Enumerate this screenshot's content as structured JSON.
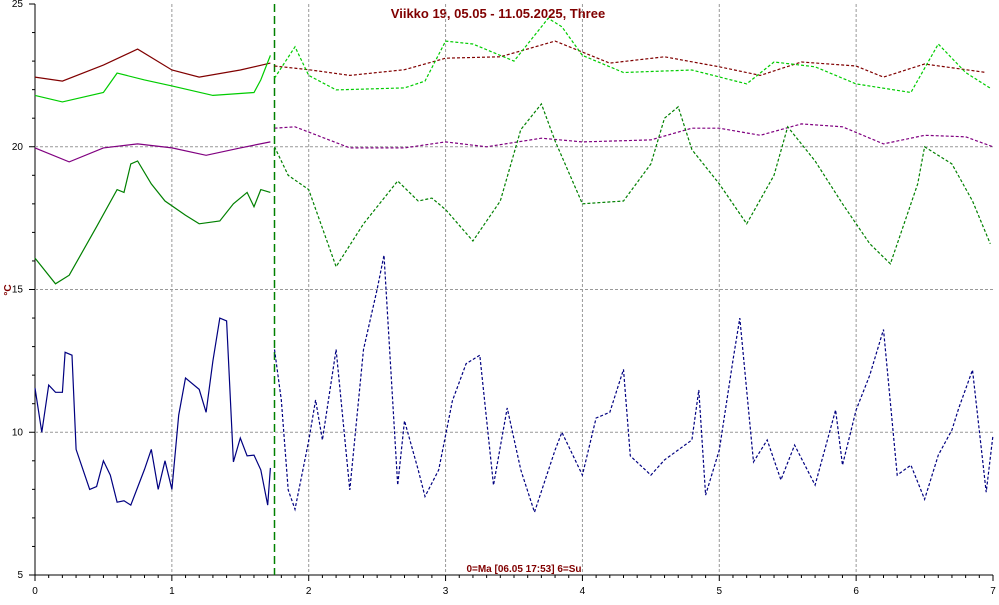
{
  "chart_data": {
    "type": "line",
    "title": "Viikko 19, 05.05 - 11.05.2025, Three",
    "y_label": "°C",
    "x_note": "0=Ma [06.05 17:53] 6=Su",
    "xlim": [
      0,
      7
    ],
    "ylim": [
      5,
      25
    ],
    "xticks": [
      0,
      1,
      2,
      3,
      4,
      5,
      6,
      7
    ],
    "yticks": [
      5,
      10,
      15,
      20,
      25
    ],
    "grid": true,
    "forecast_start": 1.75,
    "series": [
      {
        "color": "#800000",
        "dashed": false,
        "x": [
          0,
          0.2,
          0.5,
          0.75,
          1.0,
          1.2,
          1.5,
          1.72
        ],
        "values": [
          22.44,
          22.3,
          22.86,
          23.42,
          22.69,
          22.44,
          22.69,
          22.93
        ]
      },
      {
        "color": "#800000",
        "dashed": true,
        "x": [
          1.75,
          2.0,
          2.3,
          2.7,
          3.0,
          3.4,
          3.8,
          4.2,
          4.6,
          5.0,
          5.3,
          5.6,
          6.0,
          6.2,
          6.5,
          6.95
        ],
        "values": [
          22.83,
          22.7,
          22.5,
          22.7,
          23.1,
          23.15,
          23.7,
          22.93,
          23.15,
          22.8,
          22.5,
          22.97,
          22.83,
          22.44,
          22.9,
          22.6
        ]
      },
      {
        "color": "#00cc00",
        "dashed": false,
        "x": [
          0,
          0.2,
          0.5,
          0.6,
          0.8,
          1.0,
          1.3,
          1.6,
          1.65,
          1.72
        ],
        "values": [
          21.8,
          21.57,
          21.9,
          22.58,
          22.34,
          22.13,
          21.8,
          21.9,
          22.34,
          23.2
        ]
      },
      {
        "color": "#00cc00",
        "dashed": true,
        "x": [
          1.75,
          1.9,
          2.0,
          2.2,
          2.7,
          2.85,
          3.0,
          3.2,
          3.5,
          3.75,
          3.85,
          4.0,
          4.3,
          4.8,
          5.2,
          5.4,
          5.7,
          6.0,
          6.4,
          6.6,
          6.8,
          6.98
        ],
        "values": [
          22.4,
          23.5,
          22.5,
          21.99,
          22.06,
          22.3,
          23.7,
          23.6,
          23.0,
          24.5,
          24.2,
          23.2,
          22.6,
          22.69,
          22.2,
          22.97,
          22.8,
          22.2,
          21.9,
          23.6,
          22.6,
          22.05
        ]
      },
      {
        "color": "#800080",
        "dashed": false,
        "x": [
          0,
          0.25,
          0.5,
          0.75,
          1.0,
          1.25,
          1.5,
          1.72
        ],
        "values": [
          19.96,
          19.47,
          19.96,
          20.1,
          19.96,
          19.7,
          19.96,
          20.17
        ]
      },
      {
        "color": "#800080",
        "dashed": true,
        "x": [
          1.75,
          1.9,
          2.3,
          2.7,
          3.0,
          3.3,
          3.7,
          4.0,
          4.5,
          4.8,
          5.0,
          5.3,
          5.6,
          5.9,
          6.2,
          6.5,
          6.8,
          7.0
        ],
        "values": [
          20.65,
          20.7,
          19.96,
          19.96,
          20.17,
          20.0,
          20.3,
          20.17,
          20.24,
          20.65,
          20.65,
          20.4,
          20.8,
          20.7,
          20.1,
          20.4,
          20.35,
          20.0
        ]
      },
      {
        "color": "#008000",
        "dashed": false,
        "x": [
          0,
          0.15,
          0.25,
          0.45,
          0.6,
          0.65,
          0.7,
          0.75,
          0.85,
          0.95,
          1.1,
          1.2,
          1.35,
          1.45,
          1.55,
          1.6,
          1.65,
          1.72
        ],
        "values": [
          16.1,
          15.2,
          15.5,
          17.2,
          18.5,
          18.4,
          19.4,
          19.5,
          18.7,
          18.1,
          17.6,
          17.3,
          17.4,
          18.0,
          18.4,
          17.9,
          18.5,
          18.4
        ]
      },
      {
        "color": "#008000",
        "dashed": true,
        "x": [
          1.75,
          1.85,
          2.0,
          2.2,
          2.4,
          2.65,
          2.8,
          2.9,
          3.0,
          3.2,
          3.4,
          3.55,
          3.7,
          3.8,
          4.0,
          4.3,
          4.5,
          4.6,
          4.7,
          4.8,
          5.0,
          5.2,
          5.4,
          5.5,
          5.7,
          5.9,
          6.1,
          6.25,
          6.45,
          6.5,
          6.7,
          6.85,
          6.98
        ],
        "values": [
          20.0,
          19.0,
          18.5,
          15.8,
          17.3,
          18.8,
          18.1,
          18.2,
          17.8,
          16.7,
          18.1,
          20.6,
          21.5,
          20.2,
          18.0,
          18.1,
          19.4,
          21.0,
          21.4,
          19.9,
          18.7,
          17.3,
          19.0,
          20.7,
          19.5,
          18.0,
          16.6,
          15.9,
          18.7,
          20.0,
          19.4,
          18.1,
          16.6
        ]
      },
      {
        "color": "#000080",
        "dashed": false,
        "x": [
          0,
          0.05,
          0.1,
          0.15,
          0.2,
          0.22,
          0.27,
          0.3,
          0.4,
          0.45,
          0.5,
          0.55,
          0.6,
          0.65,
          0.7,
          0.8,
          0.85,
          0.9,
          0.95,
          1.0,
          1.05,
          1.1,
          1.2,
          1.25,
          1.3,
          1.35,
          1.4,
          1.45,
          1.5,
          1.55,
          1.6,
          1.65,
          1.7,
          1.72
        ],
        "values": [
          11.55,
          10.0,
          11.65,
          11.4,
          11.4,
          12.8,
          12.7,
          9.4,
          8.0,
          8.1,
          9.0,
          8.5,
          7.55,
          7.6,
          7.45,
          8.7,
          9.4,
          8.0,
          9.0,
          8.0,
          10.6,
          11.9,
          11.5,
          10.7,
          12.5,
          14.0,
          13.9,
          8.96,
          9.8,
          9.17,
          9.2,
          8.68,
          7.45,
          8.75
        ]
      },
      {
        "color": "#000080",
        "dashed": true,
        "x": [
          1.75,
          1.8,
          1.85,
          1.9,
          2.0,
          2.05,
          2.1,
          2.2,
          2.3,
          2.4,
          2.5,
          2.55,
          2.65,
          2.7,
          2.8,
          2.85,
          2.95,
          3.05,
          3.15,
          3.25,
          3.35,
          3.45,
          3.55,
          3.65,
          3.8,
          3.85,
          4.0,
          4.1,
          4.2,
          4.3,
          4.35,
          4.5,
          4.6,
          4.8,
          4.85,
          4.9,
          5.0,
          5.1,
          5.15,
          5.25,
          5.35,
          5.45,
          5.55,
          5.7,
          5.85,
          5.9,
          6.0,
          6.1,
          6.2,
          6.3,
          6.4,
          6.5,
          6.6,
          6.7,
          6.75,
          6.85,
          6.95,
          7.0
        ],
        "values": [
          12.9,
          11.13,
          7.98,
          7.3,
          9.7,
          11.13,
          9.73,
          12.9,
          7.98,
          12.9,
          15.0,
          16.2,
          8.15,
          10.4,
          8.68,
          7.75,
          8.68,
          11.1,
          12.4,
          12.7,
          8.15,
          10.85,
          8.68,
          7.2,
          9.38,
          10.0,
          8.5,
          10.5,
          10.7,
          12.2,
          9.17,
          8.5,
          9.03,
          9.73,
          11.48,
          7.8,
          9.38,
          12.53,
          14.0,
          8.96,
          9.73,
          8.33,
          9.55,
          8.15,
          10.78,
          8.85,
          10.78,
          12.0,
          13.6,
          8.5,
          8.85,
          7.65,
          9.2,
          10.08,
          10.85,
          12.18,
          7.9,
          9.9
        ]
      }
    ]
  }
}
